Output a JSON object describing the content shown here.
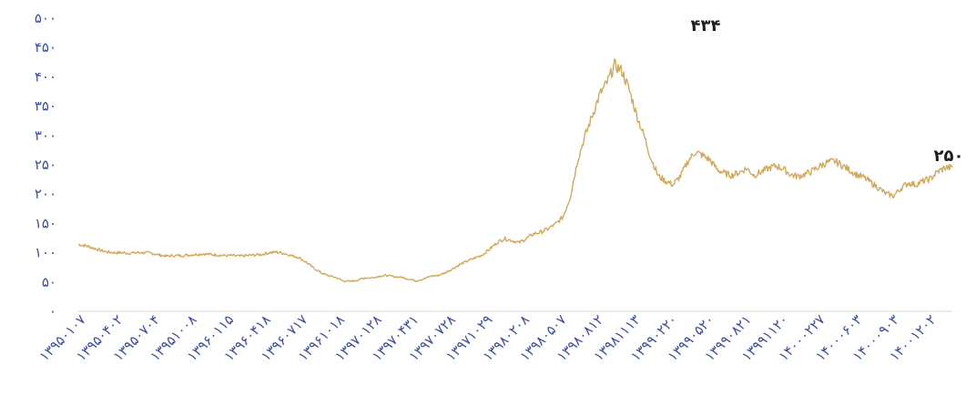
{
  "chart_data": {
    "type": "line",
    "title": "",
    "xlabel": "",
    "ylabel": "",
    "ylim": [
      0,
      500
    ],
    "grid": false,
    "legend": "none",
    "colors": {
      "line": "#d1a95d",
      "axis_text": "#3d4f9a",
      "annotation": "#1f1f1f",
      "axis_line": "#d9d9d9"
    },
    "y_ticks": [
      "۰",
      "۵۰",
      "۱۰۰",
      "۱۵۰",
      "۲۰۰",
      "۲۵۰",
      "۳۰۰",
      "۳۵۰",
      "۴۰۰",
      "۴۵۰",
      "۵۰۰"
    ],
    "x_tick_labels": [
      "۱۳۹۵۰۱۰۷",
      "۱۳۹۵۰۴۰۲",
      "۱۳۹۵۰۷۰۴",
      "۱۳۹۵۱۰۰۸",
      "۱۳۹۶۰۱۱۵",
      "۱۳۹۶۰۴۱۸",
      "۱۳۹۶۰۷۱۷",
      "۱۳۹۶۱۰۱۸",
      "۱۳۹۷۰۱۲۸",
      "۱۳۹۷۰۴۳۱",
      "۱۳۹۷۰۷۲۸",
      "۱۳۹۷۱۰۲۹",
      "۱۳۹۸۰۲۰۸",
      "۱۳۹۸۰۵۰۷",
      "۱۳۹۸۰۸۱۲",
      "۱۳۹۸۱۱۱۳",
      "۱۳۹۹۰۲۲۰",
      "۱۳۹۹۰۵۲۰",
      "۱۳۹۹۰۸۲۱",
      "۱۳۹۹۱۱۲۰",
      "۱۴۰۰۰۲۲۷",
      "۱۴۰۰۰۶۰۳",
      "۱۴۰۰۰۹۰۳",
      "۱۴۰۰۱۲۰۲"
    ],
    "series": [
      {
        "values": [
          114,
          112,
          108,
          104,
          101,
          100,
          100,
          99,
          100,
          100,
          99,
          96,
          94,
          95,
          95,
          96,
          97,
          98,
          97,
          96,
          95,
          95,
          94,
          95,
          96,
          97,
          100,
          101,
          99,
          95,
          92,
          84,
          74,
          66,
          61,
          58,
          52,
          51,
          53,
          57,
          57,
          60,
          61,
          59,
          58,
          55,
          52,
          55,
          60,
          61,
          66,
          73,
          80,
          86,
          91,
          96,
          106,
          117,
          124,
          121,
          117,
          124,
          132,
          135,
          141,
          149,
          161,
          196,
          259,
          299,
          335,
          370,
          390,
          420,
          410,
          378,
          336,
          300,
          260,
          230,
          222,
          216,
          231,
          256,
          272,
          266,
          258,
          242,
          235,
          232,
          237,
          244,
          232,
          238,
          244,
          248,
          243,
          233,
          230,
          234,
          240,
          248,
          254,
          256,
          249,
          241,
          233,
          228,
          219,
          210,
          200,
          197,
          210,
          219,
          216,
          222,
          226,
          238,
          245,
          245
        ]
      }
    ],
    "annotations": [
      {
        "text": "۴۳۴",
        "x_index": 73,
        "y": 434
      },
      {
        "text": "۲۵۰",
        "x_index": 119,
        "y": 250
      }
    ]
  }
}
